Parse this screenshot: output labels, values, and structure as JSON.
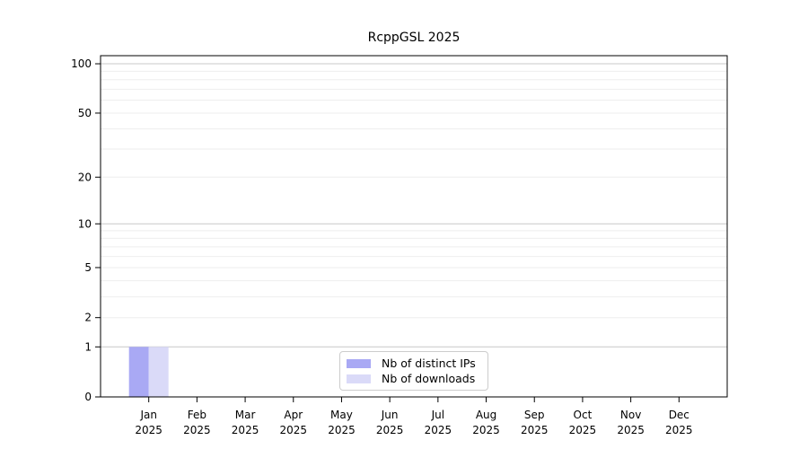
{
  "title": "RcppGSL 2025",
  "chart_data": {
    "type": "bar",
    "title": "RcppGSL 2025",
    "scale": "log1p",
    "categories": [
      "Jan",
      "Feb",
      "Mar",
      "Apr",
      "May",
      "Jun",
      "Jul",
      "Aug",
      "Sep",
      "Oct",
      "Nov",
      "Dec"
    ],
    "category_year": "2025",
    "series": [
      {
        "name": "Nb of distinct IPs",
        "color": "#a9a9f4",
        "values": [
          1,
          0,
          0,
          0,
          0,
          0,
          0,
          0,
          0,
          0,
          0,
          0
        ]
      },
      {
        "name": "Nb of downloads",
        "color": "#dadaf8",
        "values": [
          1,
          0,
          0,
          0,
          0,
          0,
          0,
          0,
          0,
          0,
          0,
          0
        ]
      }
    ],
    "xlabel": "",
    "ylabel": "",
    "y_ticks": [
      0,
      1,
      2,
      5,
      10,
      20,
      50,
      100
    ],
    "ylim": [
      0,
      112
    ],
    "grid": {
      "major_at": [
        1,
        10,
        100
      ],
      "minor_at": [
        2,
        3,
        4,
        5,
        6,
        7,
        8,
        9,
        20,
        30,
        40,
        50,
        60,
        70,
        80,
        90
      ],
      "major_color": "#c8c8c8",
      "minor_color": "#eeeeee"
    },
    "legend_position": "bottom-center"
  },
  "colors": {
    "axis": "#000000",
    "background": "#ffffff",
    "legend_border": "#cccccc"
  }
}
